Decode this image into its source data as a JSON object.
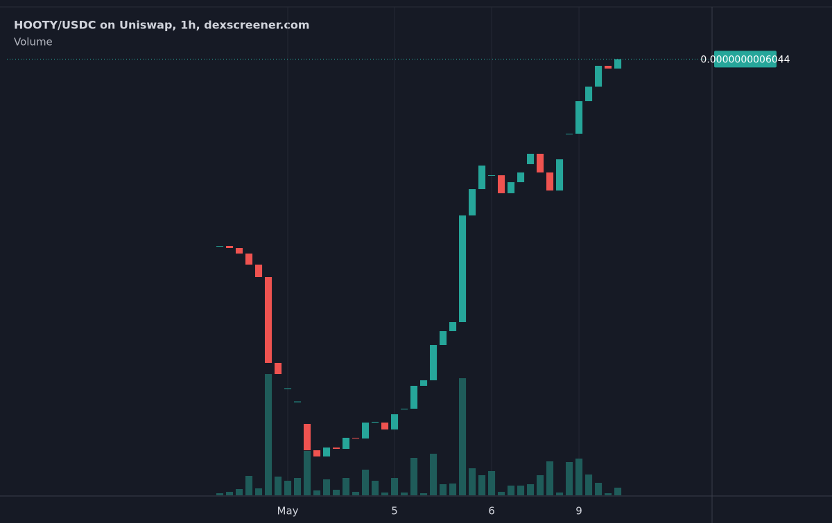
{
  "chart_data": {
    "type": "candlestick",
    "title": "HOOTY/USDC on Uniswap, 1h, dexscreener.com",
    "subtitle": "Volume",
    "up_color": "#26a69a",
    "down_color": "#ef5350",
    "volume_color": "#1f5c5a",
    "open": [
      3.451e-10,
      3.456e-10,
      3.427e-10,
      3.35e-10,
      3.197e-10,
      3.024e-10,
      1.834e-10,
      1.478e-10,
      1.296e-10,
      9.89e-11,
      6.24e-11,
      5.38e-11,
      6.62e-11,
      6.43e-11,
      7.97e-11,
      7.87e-11,
      1.008e-10,
      1.008e-10,
      9.12e-11,
      1.19e-10,
      1.2e-10,
      1.517e-10,
      1.594e-10,
      2.083e-10,
      2.275e-10,
      2.4e-10,
      3.878e-10,
      4.243e-10,
      4.43e-10,
      4.435e-10,
      4.186e-10,
      4.339e-10,
      4.589e-10,
      4.733e-10,
      4.474e-10,
      4.224e-10,
      5.006e-10,
      5.011e-10,
      5.462e-10,
      5.664e-10,
      5.952e-10,
      5.914e-10
    ],
    "close": [
      3.456e-10,
      3.427e-10,
      3.35e-10,
      3.197e-10,
      3.024e-10,
      1.834e-10,
      1.68e-10,
      1.483e-10,
      1.3e-10,
      6.24e-11,
      5.38e-11,
      6.62e-11,
      6.43e-11,
      7.97e-11,
      7.87e-11,
      1.008e-10,
      1.018e-10,
      9.12e-11,
      1.123e-10,
      1.2e-10,
      1.517e-10,
      1.594e-10,
      2.083e-10,
      2.275e-10,
      2.4e-10,
      3.878e-10,
      4.243e-10,
      4.57e-10,
      4.435e-10,
      4.186e-10,
      4.339e-10,
      4.474e-10,
      4.733e-10,
      4.474e-10,
      4.224e-10,
      4.656e-10,
      5.011e-10,
      5.462e-10,
      5.664e-10,
      5.952e-10,
      5.914e-10,
      6.044e-10
    ],
    "volume": [
      3,
      5,
      9,
      28,
      10,
      175,
      27,
      21,
      25,
      64,
      7,
      23,
      8,
      25,
      5,
      37,
      21,
      4,
      25,
      4,
      54,
      3,
      60,
      16,
      17,
      169,
      39,
      29,
      35,
      5,
      14,
      14,
      16,
      29,
      49,
      4,
      48,
      53,
      30,
      18,
      3,
      11
    ],
    "xlim": [
      -21.93,
      50.71
    ],
    "ylim": [
      0,
      6.768e-10
    ],
    "vlim": [
      0,
      705
    ],
    "xticks": [
      {
        "value": 7,
        "label": "May"
      },
      {
        "value": 18,
        "label": "5"
      },
      {
        "value": 28,
        "label": "6"
      },
      {
        "value": 37,
        "label": "9"
      }
    ],
    "price_line": {
      "value": 6.044e-10,
      "label": "0.0000000006044"
    }
  }
}
